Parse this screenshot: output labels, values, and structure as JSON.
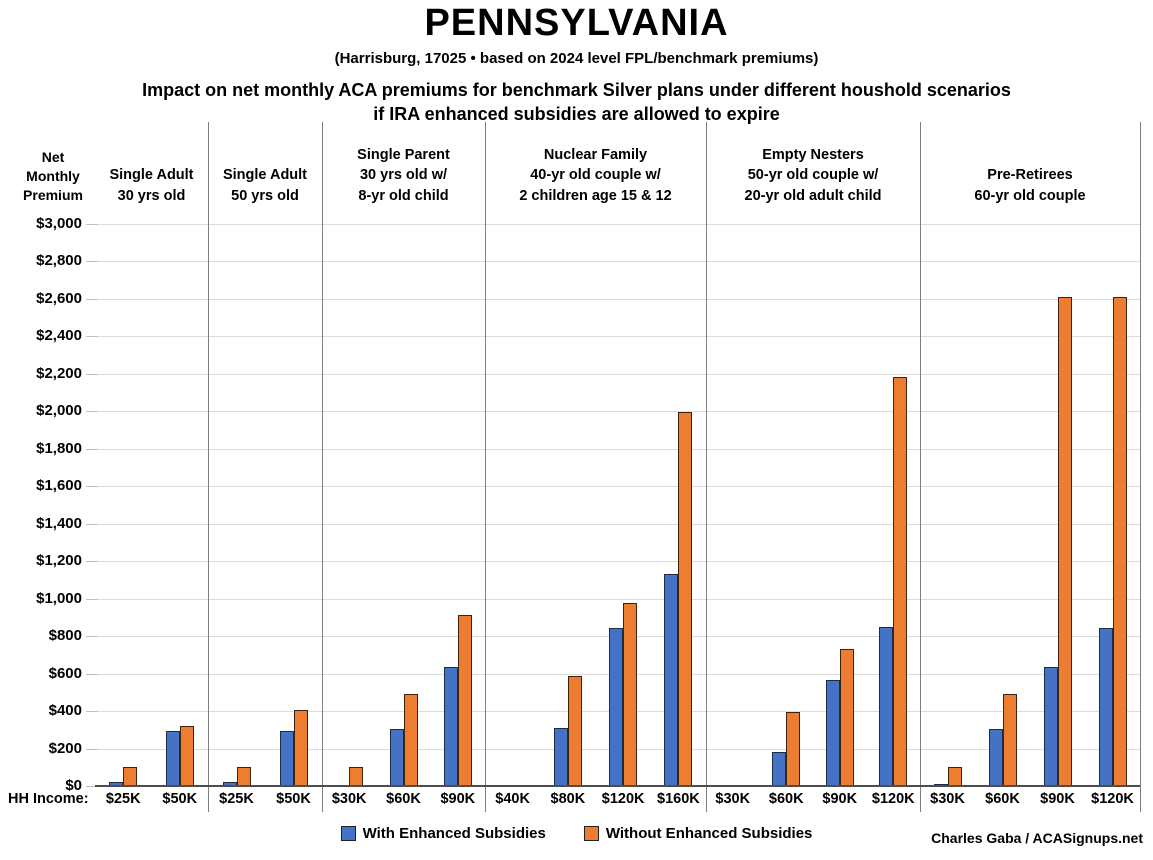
{
  "title_block": {
    "title": "PENNSYLVANIA",
    "subtitle": "(Harrisburg, 17025 • based on 2024 level FPL/benchmark premiums)",
    "description_line1": "Impact on net monthly ACA premiums for benchmark Silver plans under different houshold scenarios",
    "description_line2": "if IRA enhanced subsidies are allowed to expire"
  },
  "chart_data": {
    "type": "bar",
    "title": "PENNSYLVANIA",
    "subtitle": "(Harrisburg, 17025 • based on 2024 level FPL/benchmark premiums)",
    "y_axis": {
      "label_lines": [
        "Net",
        "Monthly",
        "Premium"
      ],
      "min": 0,
      "max": 3000,
      "step": 200,
      "tick_labels": [
        "$0",
        "$200",
        "$400",
        "$600",
        "$800",
        "$1,000",
        "$1,200",
        "$1,400",
        "$1,600",
        "$1,800",
        "$2,000",
        "$2,200",
        "$2,400",
        "$2,600",
        "$2,800",
        "$3,000"
      ]
    },
    "grid": true,
    "hh_income_label": "HH Income:",
    "series_names": [
      "With Enhanced Subsidies",
      "Without Enhanced Subsidies"
    ],
    "groups": [
      {
        "label_lines": [
          "Single Adult",
          "30 yrs old"
        ],
        "pairs": [
          {
            "income": "$25K",
            "with_subsidies": 20,
            "without_subsidies": 100
          },
          {
            "income": "$50K",
            "with_subsidies": 295,
            "without_subsidies": 320
          }
        ]
      },
      {
        "label_lines": [
          "Single Adult",
          "50 yrs old"
        ],
        "pairs": [
          {
            "income": "$25K",
            "with_subsidies": 20,
            "without_subsidies": 100
          },
          {
            "income": "$50K",
            "with_subsidies": 295,
            "without_subsidies": 405
          }
        ]
      },
      {
        "label_lines": [
          "Single Parent",
          "30 yrs old w/",
          "8-yr old child"
        ],
        "pairs": [
          {
            "income": "$30K",
            "with_subsidies": 5,
            "without_subsidies": 100
          },
          {
            "income": "$60K",
            "with_subsidies": 305,
            "without_subsidies": 490
          },
          {
            "income": "$90K",
            "with_subsidies": 635,
            "without_subsidies": 915
          }
        ]
      },
      {
        "label_lines": [
          "Nuclear Family",
          "40-yr old couple w/",
          "2 children age 15 & 12"
        ],
        "pairs": [
          {
            "income": "$40K",
            "with_subsidies": 0,
            "without_subsidies": 0
          },
          {
            "income": "$80K",
            "with_subsidies": 310,
            "without_subsidies": 585
          },
          {
            "income": "$120K",
            "with_subsidies": 845,
            "without_subsidies": 975
          },
          {
            "income": "$160K",
            "with_subsidies": 1130,
            "without_subsidies": 1995
          }
        ]
      },
      {
        "label_lines": [
          "Empty Nesters",
          "50-yr old couple w/",
          "20-yr old adult child"
        ],
        "pairs": [
          {
            "income": "$30K",
            "with_subsidies": 0,
            "without_subsidies": 0
          },
          {
            "income": "$60K",
            "with_subsidies": 180,
            "without_subsidies": 395
          },
          {
            "income": "$90K",
            "with_subsidies": 565,
            "without_subsidies": 730
          },
          {
            "income": "$120K",
            "with_subsidies": 850,
            "without_subsidies": 2185
          }
        ]
      },
      {
        "label_lines": [
          "Pre-Retirees",
          "60-yr old couple"
        ],
        "pairs": [
          {
            "income": "$30K",
            "with_subsidies": 10,
            "without_subsidies": 100
          },
          {
            "income": "$60K",
            "with_subsidies": 305,
            "without_subsidies": 490
          },
          {
            "income": "$90K",
            "with_subsidies": 635,
            "without_subsidies": 2610
          },
          {
            "income": "$120K",
            "with_subsidies": 845,
            "without_subsidies": 2610
          }
        ]
      }
    ],
    "colors": {
      "with_subsidies": "#4472C4",
      "without_subsidies": "#ED7D31",
      "gridline": "#dcdcdc",
      "separator": "#7f7f7f"
    },
    "legend": [
      {
        "label": "With Enhanced Subsidies",
        "color": "#4472C4"
      },
      {
        "label": "Without Enhanced Subsidies",
        "color": "#ED7D31"
      }
    ],
    "legend_position": "bottom-center",
    "credit": "Charles Gaba / ACASignups.net"
  }
}
